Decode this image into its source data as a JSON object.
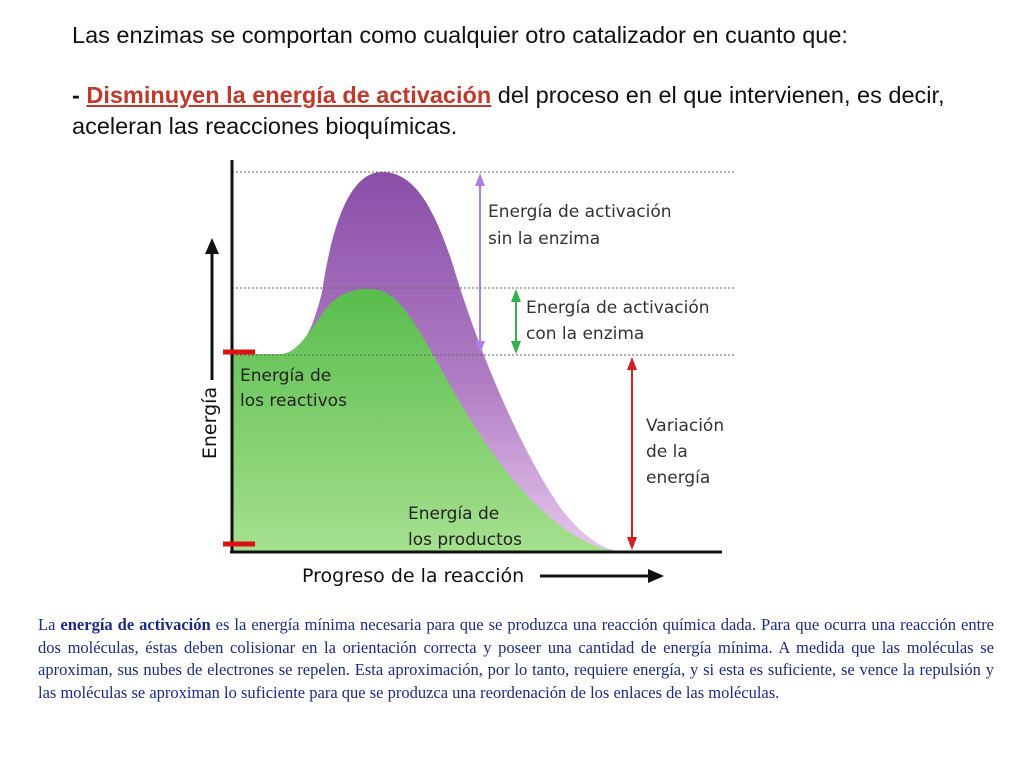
{
  "heading": "Las enzimas se comportan como cualquier otro catalizador en cuanto que:",
  "bullet": {
    "dash": "-",
    "highlight": "Disminuyen la energía de activación",
    "rest": " del proceso en el que intervienen, es decir, aceleran las reacciones bioquímicas."
  },
  "diagram": {
    "y_axis_label": "Energía",
    "x_axis_label": "Progreso de la reacción",
    "label_without_enzyme": [
      "Energía de activación",
      "sin la enzima"
    ],
    "label_with_enzyme": [
      "Energía de activación",
      "con la enzima"
    ],
    "label_reactants": [
      "Energía de",
      "los reactivos"
    ],
    "label_products": [
      "Energía de",
      "los productos"
    ],
    "label_energy_change": [
      "Variación",
      "de la",
      "energía"
    ],
    "colors": {
      "uncatalyzed_curve": "#8e5aa8",
      "catalyzed_curve": "#6cc55b",
      "arrow_without_enzyme": "#b07ee6",
      "arrow_with_enzyme": "#2fb34a",
      "arrow_energy_change": "#d21f1f",
      "level_markers": "#e01010"
    }
  },
  "paragraph": {
    "pre": "La ",
    "term": "energía de activación",
    "post": " es la energía mínima necesaria para que se produzca una reacción química dada. Para que ocurra una reacción entre dos moléculas, éstas deben colisionar en la orientación correcta y poseer una cantidad de energía mínima. A medida que las moléculas se aproximan, sus nubes de electrones se repelen. Esta aproximación, por lo tanto, requiere energía, y si esta es suficiente, se vence la repulsión y las moléculas se aproximan lo suficiente para que se produzca una reordenación de los enlaces de las moléculas."
  }
}
